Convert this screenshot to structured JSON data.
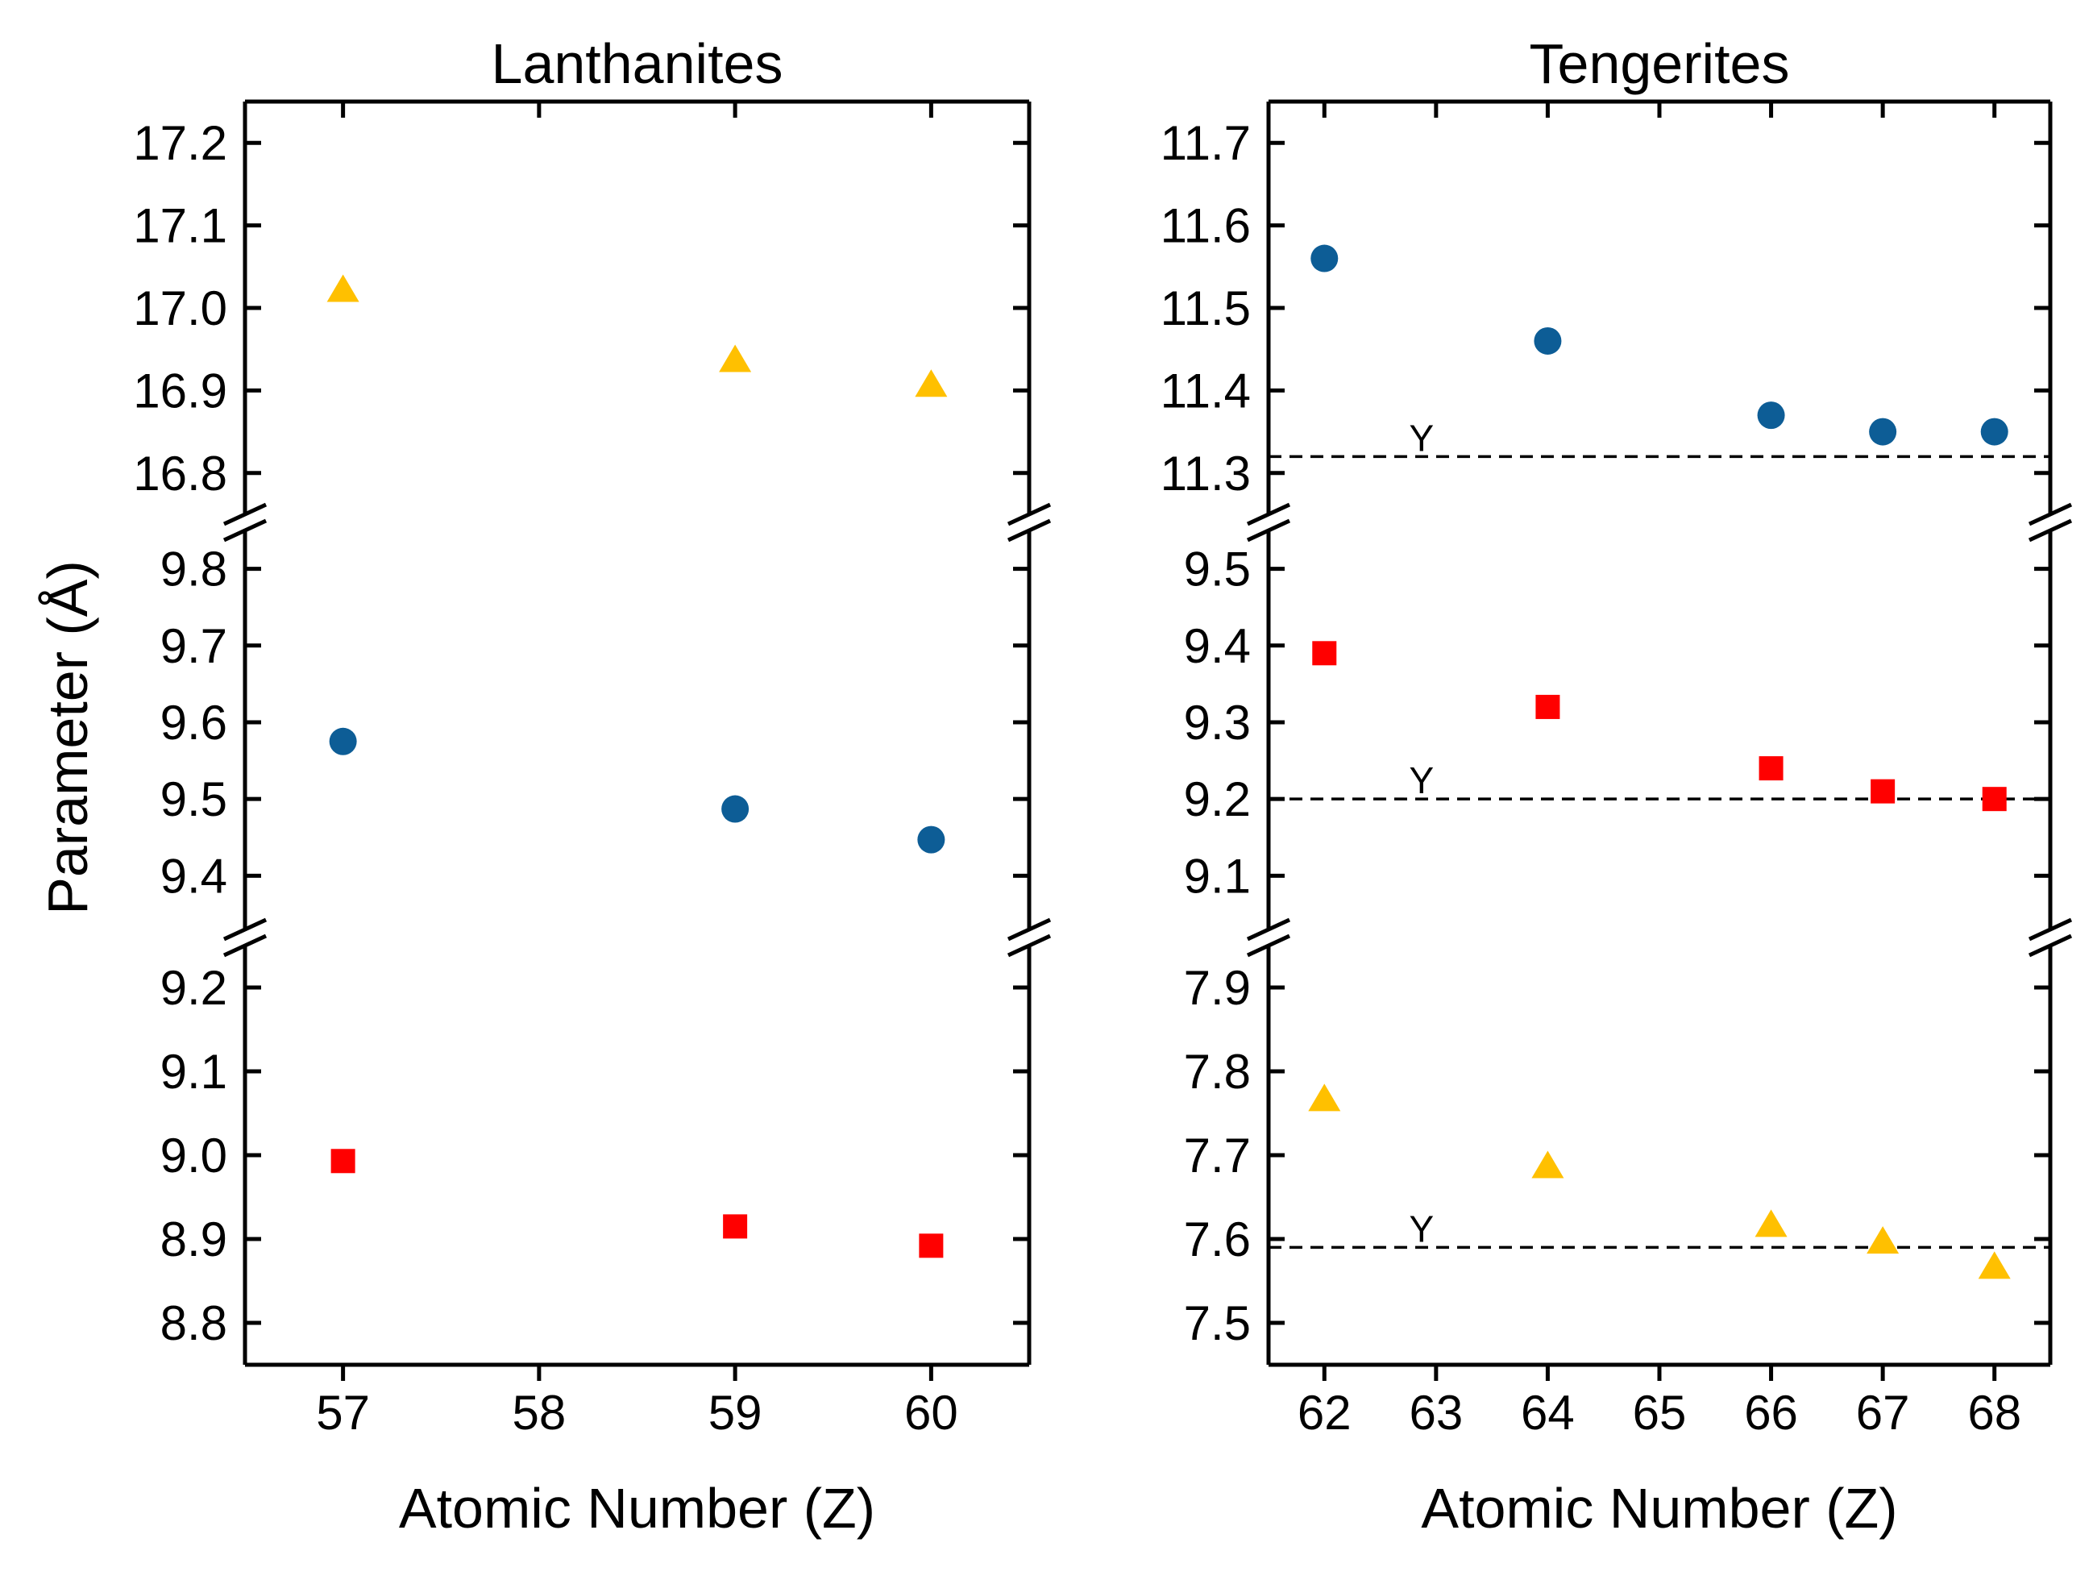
{
  "y_axis_label": "Parameter (Å)",
  "colors": {
    "a": "#0d5d96",
    "b": "#ff0000",
    "c": "#ffc000"
  },
  "chart_data": [
    {
      "type": "scatter",
      "title": "Lanthanites",
      "xlabel": "Atomic Number (Z)",
      "ylabel": "Parameter (Å)",
      "x_ticks": [
        57,
        58,
        59,
        60
      ],
      "xlim": [
        56.5,
        60.5
      ],
      "segments": [
        {
          "name": "top",
          "ylim": [
            16.75,
            17.25
          ],
          "ticks": [
            "16.8",
            "16.9",
            "17.0",
            "17.1",
            "17.2"
          ]
        },
        {
          "name": "mid",
          "ylim": [
            9.33,
            9.85
          ],
          "ticks": [
            "9.4",
            "9.5",
            "9.6",
            "9.7",
            "9.8"
          ]
        },
        {
          "name": "bot",
          "ylim": [
            8.75,
            9.25
          ],
          "ticks": [
            "8.8",
            "8.9",
            "9.0",
            "9.1",
            "9.2"
          ]
        }
      ],
      "series": [
        {
          "marker": "triangle",
          "color": "#ffc000",
          "segment": "top",
          "x": [
            57,
            59,
            60
          ],
          "y": [
            17.02,
            16.935,
            16.905
          ]
        },
        {
          "marker": "circle",
          "color": "#0d5d96",
          "segment": "mid",
          "x": [
            57,
            59,
            60
          ],
          "y": [
            9.575,
            9.487,
            9.447
          ]
        },
        {
          "marker": "square",
          "color": "#ff0000",
          "segment": "bot",
          "x": [
            57,
            59,
            60
          ],
          "y": [
            8.993,
            8.915,
            8.892
          ]
        }
      ],
      "reference_lines": [],
      "grid": false,
      "legend": "none"
    },
    {
      "type": "scatter",
      "title": "Tengerites",
      "xlabel": "Atomic Number (Z)",
      "ylabel": "",
      "x_ticks": [
        62,
        63,
        64,
        65,
        66,
        67,
        68
      ],
      "xlim": [
        61.5,
        68.5
      ],
      "segments": [
        {
          "name": "top",
          "ylim": [
            11.25,
            11.75
          ],
          "ticks": [
            "11.3",
            "11.4",
            "11.5",
            "11.6",
            "11.7"
          ]
        },
        {
          "name": "mid",
          "ylim": [
            9.03,
            9.55
          ],
          "ticks": [
            "9.1",
            "9.2",
            "9.3",
            "9.4",
            "9.5"
          ]
        },
        {
          "name": "bot",
          "ylim": [
            7.45,
            7.95
          ],
          "ticks": [
            "7.5",
            "7.6",
            "7.7",
            "7.8",
            "7.9"
          ]
        }
      ],
      "series": [
        {
          "marker": "circle",
          "color": "#0d5d96",
          "segment": "top",
          "x": [
            62,
            64,
            66,
            67,
            68
          ],
          "y": [
            11.56,
            11.46,
            11.37,
            11.35,
            11.35
          ]
        },
        {
          "marker": "square",
          "color": "#ff0000",
          "segment": "mid",
          "x": [
            62,
            64,
            66,
            67,
            68
          ],
          "y": [
            9.39,
            9.32,
            9.24,
            9.21,
            9.2
          ]
        },
        {
          "marker": "triangle",
          "color": "#ffc000",
          "segment": "bot",
          "x": [
            62,
            64,
            66,
            67,
            68
          ],
          "y": [
            7.765,
            7.685,
            7.615,
            7.595,
            7.565
          ]
        }
      ],
      "reference_lines": [
        {
          "label": "Y",
          "segment": "top",
          "y": 11.32
        },
        {
          "label": "Y",
          "segment": "mid",
          "y": 9.2
        },
        {
          "label": "Y",
          "segment": "bot",
          "y": 7.59
        }
      ],
      "grid": false,
      "legend": "none"
    }
  ]
}
